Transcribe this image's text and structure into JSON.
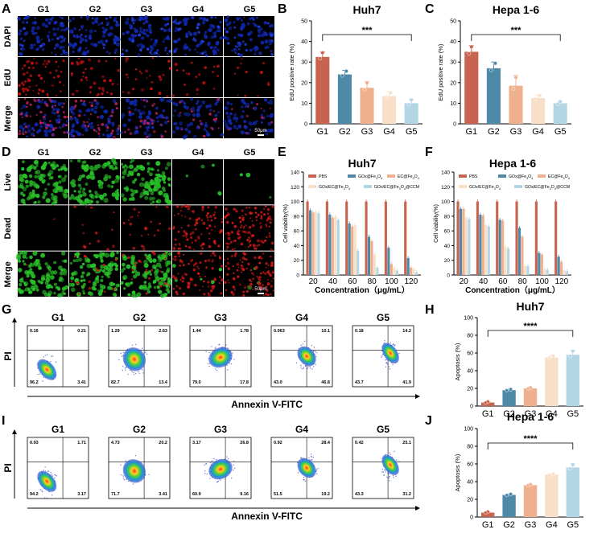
{
  "panel_letters": [
    "A",
    "B",
    "C",
    "D",
    "E",
    "F",
    "G",
    "H",
    "I",
    "J"
  ],
  "colors": {
    "G1": "#c8634f",
    "G2": "#4e89a8",
    "G3": "#efb08e",
    "G4": "#f8e0c8",
    "G5": "#b3d6e4",
    "PBS": "#c8634f",
    "GOx": "#4e89a8",
    "EC": "#efb08e",
    "GOxEC": "#f8e0c8",
    "CCM": "#b3d6e4",
    "dapi": "#1028b0",
    "edu": "#c01010",
    "live": "#28c028",
    "dead": "#d01818"
  },
  "panel_A": {
    "columns": [
      "G1",
      "G2",
      "G3",
      "G4",
      "G5"
    ],
    "rows": [
      "DAPI",
      "EdU",
      "Merge"
    ],
    "scale_bar": "50μm"
  },
  "panel_D": {
    "columns": [
      "G1",
      "G2",
      "G3",
      "G4",
      "G5"
    ],
    "rows": [
      "Live",
      "Dead",
      "Merge"
    ],
    "scale_bar": "50μm"
  },
  "panel_G": {
    "columns": [
      "G1",
      "G2",
      "G3",
      "G4",
      "G5"
    ],
    "quadrants": [
      {
        "ul": "0.16",
        "ur": "0.21",
        "ll": "96.2",
        "lr": "3.41"
      },
      {
        "ul": "1.29",
        "ur": "2.63",
        "ll": "82.7",
        "lr": "13.4"
      },
      {
        "ul": "1.44",
        "ur": "1.78",
        "ll": "79.0",
        "lr": "17.8"
      },
      {
        "ul": "0.063",
        "ur": "10.1",
        "ll": "43.0",
        "lr": "46.8"
      },
      {
        "ul": "0.18",
        "ur": "14.2",
        "ll": "43.7",
        "lr": "41.9"
      }
    ],
    "ylabel": "PI",
    "xlabel": "Annexin V-FITC"
  },
  "panel_I": {
    "columns": [
      "G1",
      "G2",
      "G3",
      "G4",
      "G5"
    ],
    "quadrants": [
      {
        "ul": "0.93",
        "ur": "1.71",
        "ll": "94.2",
        "lr": "3.17"
      },
      {
        "ul": "4.73",
        "ur": "20.2",
        "ll": "71.7",
        "lr": "3.41"
      },
      {
        "ul": "3.17",
        "ur": "26.8",
        "ll": "60.9",
        "lr": "9.16"
      },
      {
        "ul": "0.92",
        "ur": "28.4",
        "ll": "51.5",
        "lr": "19.2"
      },
      {
        "ul": "0.42",
        "ur": "25.1",
        "ll": "43.3",
        "lr": "31.2"
      }
    ],
    "ylabel": "PI",
    "xlabel": "Annexin V-FITC"
  },
  "chart_data": [
    {
      "id": "B",
      "type": "bar",
      "title": "Huh7",
      "categories": [
        "G1",
        "G2",
        "G3",
        "G4",
        "G5"
      ],
      "values": [
        32.5,
        24,
        17.5,
        13.5,
        10
      ],
      "errors": [
        2.5,
        2,
        3,
        2,
        2
      ],
      "ylabel": "EdU positive rate (%)",
      "ylim": [
        0,
        50
      ],
      "yticks": [
        "0",
        "10",
        "20",
        "30",
        "40",
        "50"
      ],
      "significance": "***"
    },
    {
      "id": "C",
      "type": "bar",
      "title": "Hepa 1-6",
      "categories": [
        "G1",
        "G2",
        "G3",
        "G4",
        "G5"
      ],
      "values": [
        35,
        27,
        18.5,
        12.5,
        10
      ],
      "errors": [
        3,
        3,
        5,
        1.5,
        1
      ],
      "ylabel": "EdU positive rate (%)",
      "ylim": [
        0,
        50
      ],
      "yticks": [
        "0",
        "10",
        "20",
        "30",
        "40",
        "50"
      ],
      "significance": "***"
    },
    {
      "id": "E",
      "type": "bar",
      "title": "Huh7",
      "categories": [
        "20",
        "40",
        "60",
        "80",
        "100",
        "120"
      ],
      "series": [
        {
          "name": "PBS",
          "values": [
            100,
            100,
            100,
            100,
            100,
            100
          ]
        },
        {
          "name": "GOx@Fe3O4",
          "values": [
            88,
            82,
            70,
            52,
            37,
            23
          ]
        },
        {
          "name": "EC@Fe3O4",
          "values": [
            85,
            78,
            66,
            46,
            15,
            10
          ]
        },
        {
          "name": "GOx/EC@Fe3O4",
          "values": [
            86,
            80,
            68,
            28,
            10,
            8
          ]
        },
        {
          "name": "GOx/EC@Fe3O4@CCM",
          "values": [
            84,
            75,
            33,
            10,
            6,
            4
          ]
        }
      ],
      "legend_labels": [
        {
          "name": "PBS",
          "sub": ""
        },
        {
          "name": "GOx@Fe",
          "sub": "3",
          "mid": "O",
          "sub2": "4"
        },
        {
          "name": "EC@Fe",
          "sub": "3",
          "mid": "O",
          "sub2": "4"
        },
        {
          "name": "GOx/EC@Fe",
          "sub": "3",
          "mid": "O",
          "sub2": "4"
        },
        {
          "name": "GOx/EC@Fe",
          "sub": "3",
          "mid": "O",
          "sub2": "4",
          "tail": "@CCM"
        }
      ],
      "ylabel": "Cell viability(%)",
      "ylim": [
        0,
        140
      ],
      "yticks": [
        "0",
        "20",
        "40",
        "60",
        "80",
        "100",
        "120",
        "140"
      ],
      "xlabel": "Concentration（μg/mL）"
    },
    {
      "id": "F",
      "type": "bar",
      "title": "Hepa 1-6",
      "categories": [
        "20",
        "40",
        "60",
        "80",
        "100",
        "120"
      ],
      "series": [
        {
          "name": "PBS",
          "values": [
            100,
            100,
            100,
            100,
            100,
            100
          ]
        },
        {
          "name": "GOx@Fe3O4",
          "values": [
            90,
            82,
            75,
            64,
            30,
            25
          ]
        },
        {
          "name": "EC@Fe3O4",
          "values": [
            90,
            81,
            74,
            52,
            28,
            18
          ]
        },
        {
          "name": "GOx/EC@Fe3O4",
          "values": [
            78,
            68,
            38,
            12,
            8,
            6
          ]
        },
        {
          "name": "GOx/EC@Fe3O4@CCM",
          "values": [
            76,
            66,
            36,
            12,
            7,
            5
          ]
        }
      ],
      "legend_labels": [
        {
          "name": "PBS",
          "sub": ""
        },
        {
          "name": "GOx@Fe",
          "sub": "3",
          "mid": "O",
          "sub2": "4"
        },
        {
          "name": "EC@Fe",
          "sub": "3",
          "mid": "O",
          "sub2": "4"
        },
        {
          "name": "GOx/EC@Fe",
          "sub": "3",
          "mid": "O",
          "sub2": "4"
        },
        {
          "name": "GOx/EC@Fe",
          "sub": "3",
          "mid": "O",
          "sub2": "4",
          "tail": "@CCM"
        }
      ],
      "ylabel": "Cell viability(%)",
      "ylim": [
        0,
        140
      ],
      "yticks": [
        "0",
        "20",
        "40",
        "60",
        "80",
        "100",
        "120",
        "140"
      ],
      "xlabel": "Concentration（μg/mL）"
    },
    {
      "id": "H",
      "type": "bar",
      "title": "Huh7",
      "categories": [
        "G1",
        "G2",
        "G3",
        "G4",
        "G5"
      ],
      "values": [
        4,
        18,
        20,
        55,
        58
      ],
      "errors": [
        1,
        1,
        1,
        2,
        5
      ],
      "ylabel": "Apoptosis (%)",
      "ylim": [
        0,
        100
      ],
      "yticks": [
        "0",
        "20",
        "40",
        "60",
        "80",
        "100"
      ],
      "significance": "****"
    },
    {
      "id": "J",
      "type": "bar",
      "title": "Hepa 1-6",
      "categories": [
        "G1",
        "G2",
        "G3",
        "G4",
        "G5"
      ],
      "values": [
        5,
        25,
        36,
        48,
        56
      ],
      "errors": [
        1,
        1,
        1,
        1,
        4
      ],
      "ylabel": "Apoptosis (%)",
      "ylim": [
        0,
        100
      ],
      "yticks": [
        "0",
        "20",
        "40",
        "60",
        "80",
        "100"
      ],
      "significance": "****"
    }
  ]
}
